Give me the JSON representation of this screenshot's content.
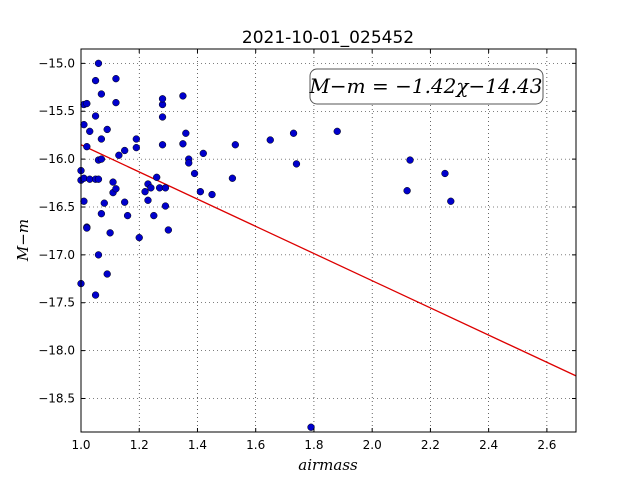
{
  "chart_data": {
    "type": "scatter",
    "title": "2021-10-01_025452",
    "xlabel": "airmass",
    "ylabel": "M−m",
    "xlim": [
      1.0,
      2.7
    ],
    "ylim": [
      -18.85,
      -14.85
    ],
    "y_inverted": true,
    "grid": true,
    "x_ticks": [
      1.0,
      1.2,
      1.4,
      1.6,
      1.8,
      2.0,
      2.2,
      2.4,
      2.6
    ],
    "x_tick_labels": [
      "1.0",
      "1.2",
      "1.4",
      "1.6",
      "1.8",
      "2.0",
      "2.2",
      "2.4",
      "2.6"
    ],
    "y_ticks": [
      -15.0,
      -15.5,
      -16.0,
      -16.5,
      -17.0,
      -17.5,
      -18.0,
      -18.5
    ],
    "y_tick_labels": [
      "−15.0",
      "−15.5",
      "−16.0",
      "−16.5",
      "−17.0",
      "−17.5",
      "−18.0",
      "−18.5"
    ],
    "annotation": "M−m = −1.42χ−14.43",
    "point_color": "#0000cc",
    "line_color": "#dd0000",
    "fit": {
      "slope": -1.42,
      "intercept": -14.43
    },
    "points": [
      {
        "x": 1.0,
        "y": -16.22
      },
      {
        "x": 1.0,
        "y": -16.12
      },
      {
        "x": 1.0,
        "y": -17.3
      },
      {
        "x": 1.01,
        "y": -15.64
      },
      {
        "x": 1.01,
        "y": -15.43
      },
      {
        "x": 1.01,
        "y": -16.44
      },
      {
        "x": 1.01,
        "y": -16.2
      },
      {
        "x": 1.02,
        "y": -16.71
      },
      {
        "x": 1.02,
        "y": -15.87
      },
      {
        "x": 1.02,
        "y": -16.72
      },
      {
        "x": 1.02,
        "y": -15.42
      },
      {
        "x": 1.03,
        "y": -16.21
      },
      {
        "x": 1.03,
        "y": -15.71
      },
      {
        "x": 1.05,
        "y": -15.18
      },
      {
        "x": 1.05,
        "y": -15.55
      },
      {
        "x": 1.05,
        "y": -16.21
      },
      {
        "x": 1.05,
        "y": -17.42
      },
      {
        "x": 1.06,
        "y": -15.0
      },
      {
        "x": 1.06,
        "y": -16.21
      },
      {
        "x": 1.06,
        "y": -16.01
      },
      {
        "x": 1.06,
        "y": -17.0
      },
      {
        "x": 1.07,
        "y": -16.0
      },
      {
        "x": 1.07,
        "y": -16.57
      },
      {
        "x": 1.07,
        "y": -15.79
      },
      {
        "x": 1.07,
        "y": -15.32
      },
      {
        "x": 1.08,
        "y": -16.46
      },
      {
        "x": 1.09,
        "y": -17.2
      },
      {
        "x": 1.09,
        "y": -15.69
      },
      {
        "x": 1.1,
        "y": -16.77
      },
      {
        "x": 1.11,
        "y": -16.35
      },
      {
        "x": 1.11,
        "y": -16.24
      },
      {
        "x": 1.12,
        "y": -15.41
      },
      {
        "x": 1.12,
        "y": -15.16
      },
      {
        "x": 1.12,
        "y": -16.31
      },
      {
        "x": 1.13,
        "y": -15.96
      },
      {
        "x": 1.15,
        "y": -16.45
      },
      {
        "x": 1.15,
        "y": -15.91
      },
      {
        "x": 1.16,
        "y": -16.59
      },
      {
        "x": 1.19,
        "y": -15.79
      },
      {
        "x": 1.19,
        "y": -15.88
      },
      {
        "x": 1.2,
        "y": -16.82
      },
      {
        "x": 1.22,
        "y": -16.34
      },
      {
        "x": 1.23,
        "y": -16.26
      },
      {
        "x": 1.23,
        "y": -16.43
      },
      {
        "x": 1.24,
        "y": -16.3
      },
      {
        "x": 1.25,
        "y": -16.59
      },
      {
        "x": 1.26,
        "y": -16.19
      },
      {
        "x": 1.27,
        "y": -16.3
      },
      {
        "x": 1.28,
        "y": -15.56
      },
      {
        "x": 1.28,
        "y": -15.85
      },
      {
        "x": 1.28,
        "y": -15.43
      },
      {
        "x": 1.28,
        "y": -15.37
      },
      {
        "x": 1.29,
        "y": -16.3
      },
      {
        "x": 1.29,
        "y": -16.49
      },
      {
        "x": 1.3,
        "y": -16.74
      },
      {
        "x": 1.35,
        "y": -15.34
      },
      {
        "x": 1.35,
        "y": -15.84
      },
      {
        "x": 1.36,
        "y": -15.73
      },
      {
        "x": 1.37,
        "y": -16.0
      },
      {
        "x": 1.37,
        "y": -16.04
      },
      {
        "x": 1.39,
        "y": -16.15
      },
      {
        "x": 1.41,
        "y": -16.34
      },
      {
        "x": 1.42,
        "y": -15.94
      },
      {
        "x": 1.45,
        "y": -16.37
      },
      {
        "x": 1.52,
        "y": -16.2
      },
      {
        "x": 1.53,
        "y": -15.85
      },
      {
        "x": 1.65,
        "y": -15.8
      },
      {
        "x": 1.73,
        "y": -15.73
      },
      {
        "x": 1.74,
        "y": -16.05
      },
      {
        "x": 1.79,
        "y": -18.8
      },
      {
        "x": 1.88,
        "y": -15.71
      },
      {
        "x": 2.12,
        "y": -16.33
      },
      {
        "x": 2.13,
        "y": -16.01
      },
      {
        "x": 2.25,
        "y": -16.15
      },
      {
        "x": 2.27,
        "y": -16.44
      }
    ]
  }
}
